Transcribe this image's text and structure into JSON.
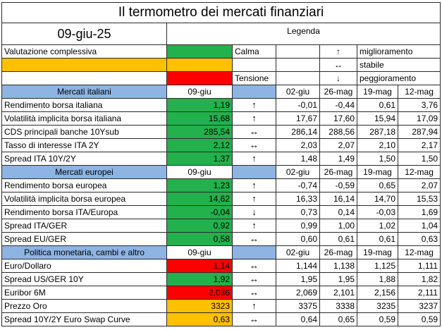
{
  "title": "Il termometro dei mercati finanziari",
  "date": "09-giu-25",
  "legend": {
    "header": "Legenda",
    "overall_label": "Valutazione complessiva",
    "calma": "Calma",
    "tensione": "Tensione",
    "up_symbol": "↑",
    "up_label": "miglioramento",
    "stable_symbol": "↔",
    "stable_label": "stabile",
    "down_symbol": "↓",
    "down_label": "peggioramento"
  },
  "colors": {
    "calma": "#22b14c",
    "neutral": "#ffc000",
    "tensione": "#ff0000",
    "section": "#8db4e2"
  },
  "sections": [
    {
      "title": "Mercati italiani",
      "current_date": "09-giu",
      "dates": [
        "02-giu",
        "26-mag",
        "19-mag",
        "12-mag"
      ],
      "rows": [
        {
          "label": "Rendimento borsa italiana",
          "current": "1,19",
          "status": "green",
          "trend": "↑",
          "history": [
            "-0,01",
            "-0,44",
            "0,61",
            "3,76"
          ]
        },
        {
          "label": "Volatilità implicita borsa italiana",
          "current": "15,68",
          "status": "green",
          "trend": "↑",
          "history": [
            "17,67",
            "17,60",
            "15,94",
            "17,09"
          ]
        },
        {
          "label": "CDS principali banche 10Ysub",
          "current": "285,54",
          "status": "green",
          "trend": "↔",
          "history": [
            "286,14",
            "288,56",
            "287,18",
            "287,94"
          ]
        },
        {
          "label": "Tasso di interesse ITA 2Y",
          "current": "2,12",
          "status": "green",
          "trend": "↔",
          "history": [
            "2,03",
            "2,07",
            "2,10",
            "2,17"
          ]
        },
        {
          "label": "Spread ITA 10Y/2Y",
          "current": "1,37",
          "status": "green",
          "trend": "↑",
          "history": [
            "1,48",
            "1,49",
            "1,50",
            "1,50"
          ]
        }
      ]
    },
    {
      "title": "Mercati europei",
      "current_date": "09-giu",
      "dates": [
        "02-giu",
        "26-mag",
        "19-mag",
        "12-mag"
      ],
      "rows": [
        {
          "label": "Rendimento borsa europea",
          "current": "1,23",
          "status": "green",
          "trend": "↑",
          "history": [
            "-0,74",
            "-0,59",
            "0,65",
            "2,07"
          ]
        },
        {
          "label": "Volatilità implicita borsa europea",
          "current": "14,62",
          "status": "green",
          "trend": "↑",
          "history": [
            "16,33",
            "16,14",
            "14,70",
            "15,53"
          ]
        },
        {
          "label": "Rendimento borsa ITA/Europa",
          "current": "-0,04",
          "status": "green",
          "trend": "↓",
          "history": [
            "0,73",
            "0,14",
            "-0,03",
            "1,69"
          ]
        },
        {
          "label": "Spread ITA/GER",
          "current": "0,92",
          "status": "green",
          "trend": "↑",
          "history": [
            "0,99",
            "1,00",
            "1,02",
            "1,04"
          ]
        },
        {
          "label": "Spread EU/GER",
          "current": "0,58",
          "status": "green",
          "trend": "↔",
          "history": [
            "0,60",
            "0,61",
            "0,61",
            "0,63"
          ]
        }
      ]
    },
    {
      "title": "Politica monetaria, cambi e altro",
      "current_date": "09-giu",
      "dates": [
        "02-giu",
        "26-mag",
        "19-mag",
        "12-mag"
      ],
      "rows": [
        {
          "label": "Euro/Dollaro",
          "current": "1,14",
          "status": "red",
          "trend": "↔",
          "history": [
            "1,144",
            "1,138",
            "1,125",
            "1,111"
          ]
        },
        {
          "label": "Spread US/GER 10Y",
          "current": "1,92",
          "status": "green",
          "trend": "↔",
          "history": [
            "1,95",
            "1,95",
            "1,88",
            "1,82"
          ]
        },
        {
          "label": "Euribor 6M",
          "current": "2,036",
          "status": "red",
          "trend": "↔",
          "history": [
            "2,069",
            "2,101",
            "2,156",
            "2,111"
          ]
        },
        {
          "label": "Prezzo Oro",
          "current": "3323",
          "status": "amber",
          "trend": "↑",
          "history": [
            "3375",
            "3338",
            "3235",
            "3237"
          ]
        },
        {
          "label": "Spread 10Y/2Y Euro Swap Curve",
          "current": "0,63",
          "status": "amber",
          "trend": "↔",
          "history": [
            "0,64",
            "0,65",
            "0,59",
            "0,59"
          ]
        }
      ]
    }
  ]
}
